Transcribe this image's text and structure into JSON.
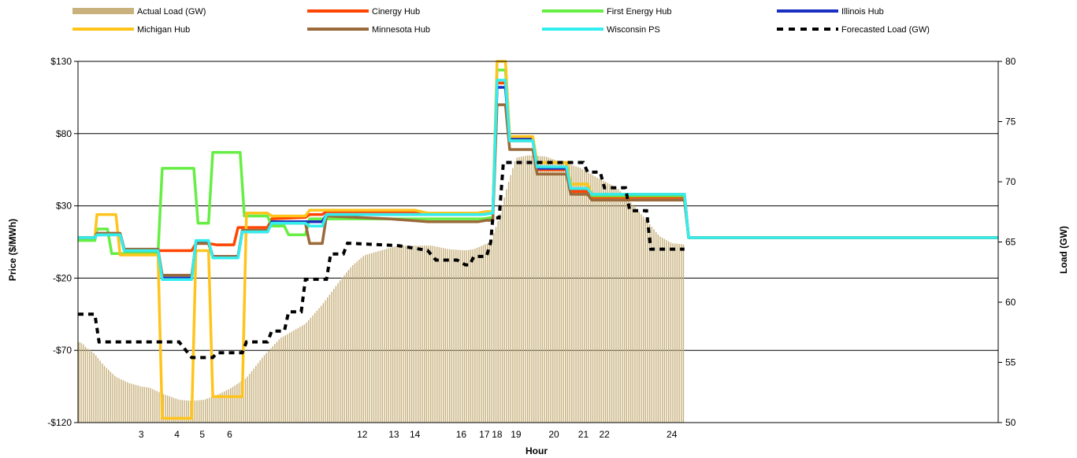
{
  "chart_data": {
    "type": "line",
    "xlabel": "Hour",
    "ylabel_left": "Price ($/MWh)",
    "ylabel_right": "Load (GW)",
    "y_left_range": [
      -120,
      130
    ],
    "y_left_ticks": [
      {
        "value": 130,
        "label": "$130"
      },
      {
        "value": 80,
        "label": "$80"
      },
      {
        "value": 30,
        "label": "$30"
      },
      {
        "value": -20,
        "label": "-$20"
      },
      {
        "value": -70,
        "label": "-$70"
      },
      {
        "value": -120,
        "label": "-$120"
      }
    ],
    "y_right_range": [
      50,
      80
    ],
    "y_right_ticks": [
      "50",
      "55",
      "60",
      "65",
      "70",
      "75",
      "80"
    ],
    "x_range": [
      0,
      288
    ],
    "x_ticks": [
      {
        "x": 30,
        "label": "3"
      },
      {
        "x": 47,
        "label": "4"
      },
      {
        "x": 59,
        "label": "5"
      },
      {
        "x": 72,
        "label": "6"
      },
      {
        "x": 135,
        "label": "12"
      },
      {
        "x": 150,
        "label": "13"
      },
      {
        "x": 160,
        "label": "14"
      },
      {
        "x": 182,
        "label": "16"
      },
      {
        "x": 193,
        "label": "17"
      },
      {
        "x": 199,
        "label": "18"
      },
      {
        "x": 208,
        "label": "19"
      },
      {
        "x": 226,
        "label": "20"
      },
      {
        "x": 240,
        "label": "21"
      },
      {
        "x": 250,
        "label": "22"
      },
      {
        "x": 282,
        "label": "24"
      }
    ],
    "grid": "horizontal",
    "legend_position": "top",
    "load_bar_color": "#c8b17c",
    "actual_load": {
      "name": "Actual Load (GW)",
      "x_end": 288,
      "points": [
        [
          0,
          56.7
        ],
        [
          2,
          56.6
        ],
        [
          4,
          56.2
        ],
        [
          8,
          55.7
        ],
        [
          12,
          54.8
        ],
        [
          18,
          53.8
        ],
        [
          24,
          53.3
        ],
        [
          30,
          53.0
        ],
        [
          34,
          52.9
        ],
        [
          40,
          52.4
        ],
        [
          48,
          51.9
        ],
        [
          54,
          51.8
        ],
        [
          60,
          51.9
        ],
        [
          66,
          52.3
        ],
        [
          72,
          52.8
        ],
        [
          80,
          53.7
        ],
        [
          88,
          55.5
        ],
        [
          96,
          57.0
        ],
        [
          108,
          58.2
        ],
        [
          116,
          59.8
        ],
        [
          124,
          61.7
        ],
        [
          130,
          63.0
        ],
        [
          136,
          63.9
        ],
        [
          144,
          64.3
        ],
        [
          152,
          64.7
        ],
        [
          160,
          64.7
        ],
        [
          168,
          64.7
        ],
        [
          176,
          64.4
        ],
        [
          184,
          64.3
        ],
        [
          188,
          64.4
        ],
        [
          196,
          65.0
        ],
        [
          200,
          67.0
        ],
        [
          204,
          69.7
        ],
        [
          208,
          72.0
        ],
        [
          214,
          72.2
        ],
        [
          222,
          72.1
        ],
        [
          230,
          71.6
        ],
        [
          238,
          71.2
        ],
        [
          246,
          70.4
        ],
        [
          256,
          69.5
        ],
        [
          264,
          68.0
        ],
        [
          270,
          66.8
        ],
        [
          276,
          65.5
        ],
        [
          282,
          64.9
        ],
        [
          288,
          64.8
        ]
      ]
    },
    "forecast_load": {
      "name": "Forecasted Load (GW)",
      "points": [
        [
          0,
          59.0
        ],
        [
          8,
          59.0
        ],
        [
          10,
          56.7
        ],
        [
          48,
          56.7
        ],
        [
          54,
          55.4
        ],
        [
          64,
          55.4
        ],
        [
          66,
          55.8
        ],
        [
          78,
          55.8
        ],
        [
          80,
          56.7
        ],
        [
          90,
          56.7
        ],
        [
          92,
          57.6
        ],
        [
          98,
          57.6
        ],
        [
          100,
          59.2
        ],
        [
          106,
          59.2
        ],
        [
          108,
          61.9
        ],
        [
          118,
          61.9
        ],
        [
          120,
          64.0
        ],
        [
          126,
          64.0
        ],
        [
          128,
          64.9
        ],
        [
          152,
          64.7
        ],
        [
          166,
          64.3
        ],
        [
          170,
          63.5
        ],
        [
          180,
          63.5
        ],
        [
          184,
          63.1
        ],
        [
          186,
          63.1
        ],
        [
          188,
          63.8
        ],
        [
          194,
          63.8
        ],
        [
          196,
          65.0
        ],
        [
          197,
          67.0
        ],
        [
          200,
          67.0
        ],
        [
          202,
          71.6
        ],
        [
          240,
          71.6
        ],
        [
          242,
          70.8
        ],
        [
          248,
          70.8
        ],
        [
          250,
          69.5
        ],
        [
          260,
          69.5
        ],
        [
          262,
          67.6
        ],
        [
          270,
          67.6
        ],
        [
          272,
          64.4
        ],
        [
          288,
          64.4
        ]
      ]
    },
    "series": [
      {
        "name": "Cinergy Hub",
        "color": "#ff4500",
        "points": [
          [
            0,
            8
          ],
          [
            8,
            8
          ],
          [
            9,
            11
          ],
          [
            20,
            11
          ],
          [
            22,
            -1
          ],
          [
            38,
            -1
          ],
          [
            40,
            -1
          ],
          [
            54,
            -1
          ],
          [
            56,
            4
          ],
          [
            62,
            4
          ],
          [
            66,
            3
          ],
          [
            74,
            3
          ],
          [
            76,
            15
          ],
          [
            90,
            15
          ],
          [
            92,
            21
          ],
          [
            108,
            22
          ],
          [
            110,
            24
          ],
          [
            116,
            24
          ],
          [
            118,
            26
          ],
          [
            160,
            26
          ],
          [
            166,
            25
          ],
          [
            190,
            25
          ],
          [
            194,
            26
          ],
          [
            197,
            26
          ],
          [
            199,
            115
          ],
          [
            203,
            115
          ],
          [
            205,
            75
          ],
          [
            216,
            75
          ],
          [
            218,
            55
          ],
          [
            232,
            55
          ],
          [
            234,
            40
          ],
          [
            242,
            40
          ],
          [
            244,
            36
          ],
          [
            288,
            36
          ],
          [
            290,
            8
          ],
          [
            437,
            8
          ]
        ]
      },
      {
        "name": "First Energy Hub",
        "color": "#66ee44",
        "points": [
          [
            0,
            6
          ],
          [
            8,
            6
          ],
          [
            9,
            14
          ],
          [
            14,
            14
          ],
          [
            16,
            -3
          ],
          [
            38,
            -3
          ],
          [
            40,
            56
          ],
          [
            55,
            56
          ],
          [
            57,
            18
          ],
          [
            62,
            18
          ],
          [
            64,
            67
          ],
          [
            77,
            67
          ],
          [
            79,
            23
          ],
          [
            90,
            23
          ],
          [
            92,
            16
          ],
          [
            98,
            16
          ],
          [
            100,
            10
          ],
          [
            108,
            10
          ],
          [
            110,
            21
          ],
          [
            192,
            21
          ],
          [
            197,
            22
          ],
          [
            199,
            124
          ],
          [
            203,
            124
          ],
          [
            205,
            76
          ],
          [
            216,
            76
          ],
          [
            218,
            60
          ],
          [
            232,
            60
          ],
          [
            234,
            45
          ],
          [
            242,
            45
          ],
          [
            244,
            37
          ],
          [
            288,
            37
          ],
          [
            290,
            8
          ],
          [
            437,
            8
          ]
        ]
      },
      {
        "name": "Illinois Hub",
        "color": "#1a2fbf",
        "points": [
          [
            0,
            8
          ],
          [
            8,
            8
          ],
          [
            9,
            10
          ],
          [
            20,
            10
          ],
          [
            22,
            -1
          ],
          [
            38,
            -1
          ],
          [
            40,
            -20
          ],
          [
            54,
            -20
          ],
          [
            56,
            5
          ],
          [
            62,
            5
          ],
          [
            64,
            -5
          ],
          [
            76,
            -5
          ],
          [
            78,
            12
          ],
          [
            90,
            12
          ],
          [
            92,
            19
          ],
          [
            108,
            19
          ],
          [
            110,
            19
          ],
          [
            116,
            19
          ],
          [
            118,
            24
          ],
          [
            192,
            24
          ],
          [
            197,
            25
          ],
          [
            199,
            112
          ],
          [
            203,
            112
          ],
          [
            205,
            77
          ],
          [
            216,
            77
          ],
          [
            218,
            56
          ],
          [
            232,
            56
          ],
          [
            234,
            42
          ],
          [
            242,
            42
          ],
          [
            244,
            38
          ],
          [
            288,
            38
          ],
          [
            290,
            8
          ],
          [
            437,
            8
          ]
        ]
      },
      {
        "name": "Michigan Hub",
        "color": "#ffc41c",
        "points": [
          [
            0,
            8
          ],
          [
            8,
            8
          ],
          [
            9,
            24
          ],
          [
            18,
            24
          ],
          [
            20,
            -4
          ],
          [
            38,
            -4
          ],
          [
            40,
            -117
          ],
          [
            54,
            -117
          ],
          [
            56,
            -1
          ],
          [
            62,
            -1
          ],
          [
            64,
            -102
          ],
          [
            78,
            -102
          ],
          [
            80,
            25
          ],
          [
            90,
            25
          ],
          [
            92,
            23
          ],
          [
            108,
            23
          ],
          [
            110,
            27
          ],
          [
            130,
            27
          ],
          [
            140,
            27
          ],
          [
            160,
            27
          ],
          [
            166,
            25
          ],
          [
            190,
            25
          ],
          [
            194,
            26
          ],
          [
            197,
            26
          ],
          [
            199,
            130
          ],
          [
            203,
            130
          ],
          [
            205,
            78
          ],
          [
            216,
            78
          ],
          [
            218,
            60
          ],
          [
            232,
            60
          ],
          [
            234,
            45
          ],
          [
            242,
            45
          ],
          [
            244,
            38
          ],
          [
            288,
            38
          ],
          [
            290,
            8
          ],
          [
            437,
            8
          ]
        ]
      },
      {
        "name": "Minnesota Hub",
        "color": "#9a6a3a",
        "points": [
          [
            0,
            8
          ],
          [
            8,
            8
          ],
          [
            9,
            11
          ],
          [
            20,
            11
          ],
          [
            22,
            0
          ],
          [
            38,
            0
          ],
          [
            40,
            -18
          ],
          [
            54,
            -18
          ],
          [
            56,
            4
          ],
          [
            62,
            4
          ],
          [
            64,
            -5
          ],
          [
            76,
            -5
          ],
          [
            78,
            13
          ],
          [
            90,
            13
          ],
          [
            92,
            18
          ],
          [
            108,
            18
          ],
          [
            110,
            4
          ],
          [
            116,
            4
          ],
          [
            118,
            23
          ],
          [
            148,
            21
          ],
          [
            166,
            19
          ],
          [
            190,
            19
          ],
          [
            194,
            20
          ],
          [
            197,
            20
          ],
          [
            199,
            100
          ],
          [
            203,
            100
          ],
          [
            205,
            69
          ],
          [
            216,
            69
          ],
          [
            218,
            52
          ],
          [
            232,
            52
          ],
          [
            234,
            38
          ],
          [
            242,
            38
          ],
          [
            244,
            34
          ],
          [
            288,
            34
          ],
          [
            290,
            8
          ],
          [
            437,
            8
          ]
        ]
      },
      {
        "name": "Wisconsin PS",
        "color": "#33eeee",
        "points": [
          [
            0,
            8
          ],
          [
            8,
            8
          ],
          [
            9,
            10
          ],
          [
            20,
            10
          ],
          [
            22,
            -1
          ],
          [
            38,
            -1
          ],
          [
            40,
            -21
          ],
          [
            54,
            -21
          ],
          [
            56,
            6
          ],
          [
            62,
            6
          ],
          [
            64,
            -6
          ],
          [
            76,
            -6
          ],
          [
            78,
            12
          ],
          [
            90,
            12
          ],
          [
            92,
            18
          ],
          [
            108,
            18
          ],
          [
            110,
            16
          ],
          [
            116,
            16
          ],
          [
            118,
            24
          ],
          [
            192,
            24
          ],
          [
            197,
            25
          ],
          [
            199,
            117
          ],
          [
            203,
            117
          ],
          [
            205,
            75
          ],
          [
            216,
            75
          ],
          [
            218,
            57
          ],
          [
            232,
            57
          ],
          [
            234,
            42
          ],
          [
            242,
            42
          ],
          [
            244,
            38
          ],
          [
            288,
            38
          ],
          [
            290,
            8
          ],
          [
            437,
            8
          ]
        ]
      }
    ],
    "legend": [
      {
        "name": "Actual Load (GW)",
        "kind": "bar",
        "color": "#c8b17c"
      },
      {
        "name": "Cinergy Hub",
        "kind": "line",
        "color": "#ff4500"
      },
      {
        "name": "First Energy Hub",
        "kind": "line",
        "color": "#66ee44"
      },
      {
        "name": "Illinois Hub",
        "kind": "line",
        "color": "#1a2fbf"
      },
      {
        "name": "Michigan Hub",
        "kind": "line",
        "color": "#ffc41c"
      },
      {
        "name": "Minnesota Hub",
        "kind": "line",
        "color": "#9a6a3a"
      },
      {
        "name": "Wisconsin PS",
        "kind": "line",
        "color": "#33eeee"
      },
      {
        "name": "Forecasted Load (GW)",
        "kind": "dash",
        "color": "#000000"
      }
    ]
  }
}
